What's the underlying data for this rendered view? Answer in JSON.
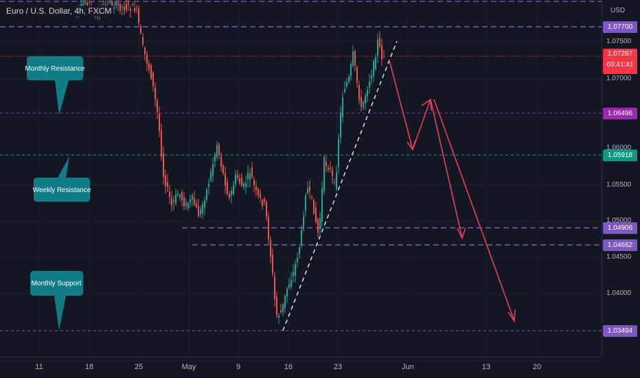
{
  "header": {
    "symbol_title": "Euro / U.S. Dollar, 4h, FXCM"
  },
  "price_axis": {
    "currency": "USD",
    "ticks": [
      "1.07500",
      "1.07000",
      "1.06000",
      "1.05500",
      "1.05000",
      "1.04500",
      "1.04000"
    ],
    "level_tags": [
      {
        "label": "1.07700",
        "color": "#7e57c2"
      },
      {
        "label": "1.06496",
        "color": "#9c27b0"
      },
      {
        "label": "1.05918",
        "color": "#089981"
      },
      {
        "label": "1.04906",
        "color": "#7e57c2"
      },
      {
        "label": "1.04662",
        "color": "#7e57c2"
      },
      {
        "label": "1.03494",
        "color": "#7e57c2"
      }
    ],
    "current_price": {
      "price": "1.07287",
      "countdown": "03:41:41",
      "color": "#f23645"
    }
  },
  "time_axis": {
    "labels": [
      "11",
      "18",
      "25",
      "May",
      "9",
      "16",
      "23",
      "Jun",
      "13",
      "20"
    ]
  },
  "annotations": {
    "monthly_resistance": "Monthly Resistance",
    "weekly_resistance": "Weekly Resistance",
    "monthly_support": "Monthly Support"
  },
  "colors": {
    "bull": "#26a69a",
    "bear": "#ef5350",
    "background": "#131722",
    "arrow": "#e84057",
    "callout": "#0f7c86"
  }
}
